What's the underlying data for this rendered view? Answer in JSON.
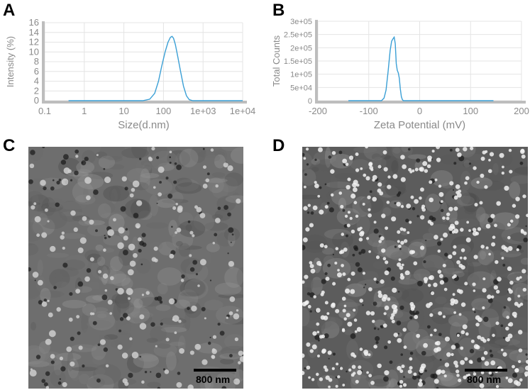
{
  "panels": {
    "a": "A",
    "b": "B",
    "c": "C",
    "d": "D"
  },
  "colors": {
    "line": "#3a9fd5",
    "axis": "#bdbdbd",
    "grid": "#e4e4e4",
    "label": "#8a8a8a"
  },
  "chart_data": [
    {
      "type": "line",
      "xlabel": "Size(d.nm)",
      "ylabel": "Intensity (%)",
      "xscale": "log",
      "xlim": [
        0.1,
        10000
      ],
      "ylim": [
        0,
        16
      ],
      "xticks": [
        "0.1",
        "1",
        "10",
        "100",
        "1e+03",
        "1e+04"
      ],
      "yticks": [
        "0",
        "2",
        "4",
        "6",
        "8",
        "10",
        "12",
        "14",
        "16"
      ],
      "grid": true,
      "series": [
        {
          "x": [
            0.4,
            30,
            45,
            60,
            75,
            90,
            110,
            130,
            150,
            165,
            180,
            200,
            230,
            270,
            320,
            380,
            450,
            550,
            10000
          ],
          "y": [
            0,
            0,
            0.3,
            1.5,
            4,
            7,
            10,
            12,
            13,
            13.2,
            12.8,
            11.5,
            9,
            6,
            3,
            1,
            0.2,
            0,
            0
          ]
        }
      ]
    },
    {
      "type": "line",
      "xlabel": "Zeta Potential (mV)",
      "ylabel": "Total Counts",
      "xlim": [
        -200,
        200
      ],
      "ylim": [
        0,
        300000
      ],
      "xticks": [
        "-200",
        "-100",
        "0",
        "100",
        "200"
      ],
      "yticks": [
        "0",
        "5e+04",
        "1e+05",
        "1.5e+05",
        "2e+05",
        "2.5e+05",
        "3e+05"
      ],
      "grid": true,
      "series": [
        {
          "x": [
            -140,
            -75,
            -70,
            -66,
            -62,
            -58,
            -55,
            -52,
            -50,
            -48,
            -46,
            -44,
            -42,
            -40,
            -38,
            -36,
            -34,
            -32,
            145
          ],
          "y": [
            0,
            0,
            10000,
            40000,
            110000,
            190000,
            225000,
            235000,
            240000,
            215000,
            140000,
            115000,
            105000,
            85000,
            45000,
            15000,
            4000,
            0,
            0
          ]
        }
      ]
    }
  ],
  "tem_c": {
    "scale_label": "800 nm"
  },
  "tem_d": {
    "scale_label": "800 nm"
  }
}
